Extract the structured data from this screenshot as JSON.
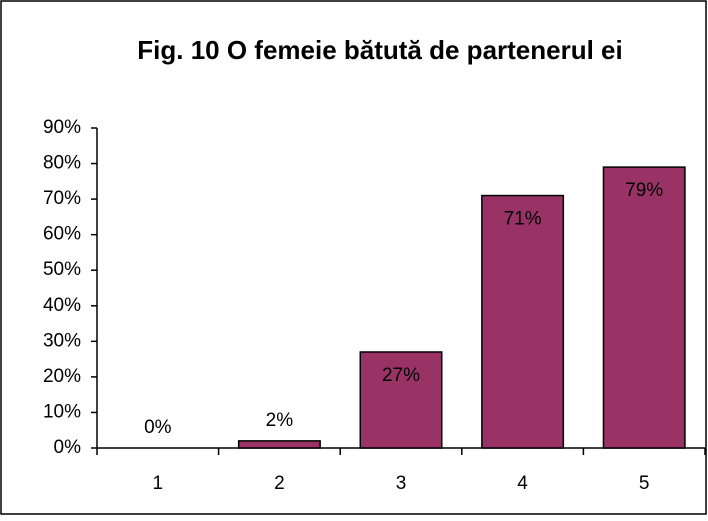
{
  "chart_data": {
    "type": "bar",
    "title": "Fig. 10 O femeie bătută de partenerul ei",
    "categories": [
      "1",
      "2",
      "3",
      "4",
      "5"
    ],
    "values": [
      0,
      2,
      27,
      71,
      79
    ],
    "value_labels": [
      "0%",
      "2%",
      "27%",
      "71%",
      "79%"
    ],
    "color": "#993366",
    "ylim": [
      0,
      90
    ],
    "yticks": [
      {
        "value": 0,
        "label": "0%"
      },
      {
        "value": 10,
        "label": "10%"
      },
      {
        "value": 20,
        "label": "20%"
      },
      {
        "value": 30,
        "label": "30%"
      },
      {
        "value": 40,
        "label": "40%"
      },
      {
        "value": 50,
        "label": "50%"
      },
      {
        "value": 60,
        "label": "60%"
      },
      {
        "value": 70,
        "label": "70%"
      },
      {
        "value": 80,
        "label": "80%"
      },
      {
        "value": 90,
        "label": "90%"
      }
    ],
    "grid": false
  }
}
